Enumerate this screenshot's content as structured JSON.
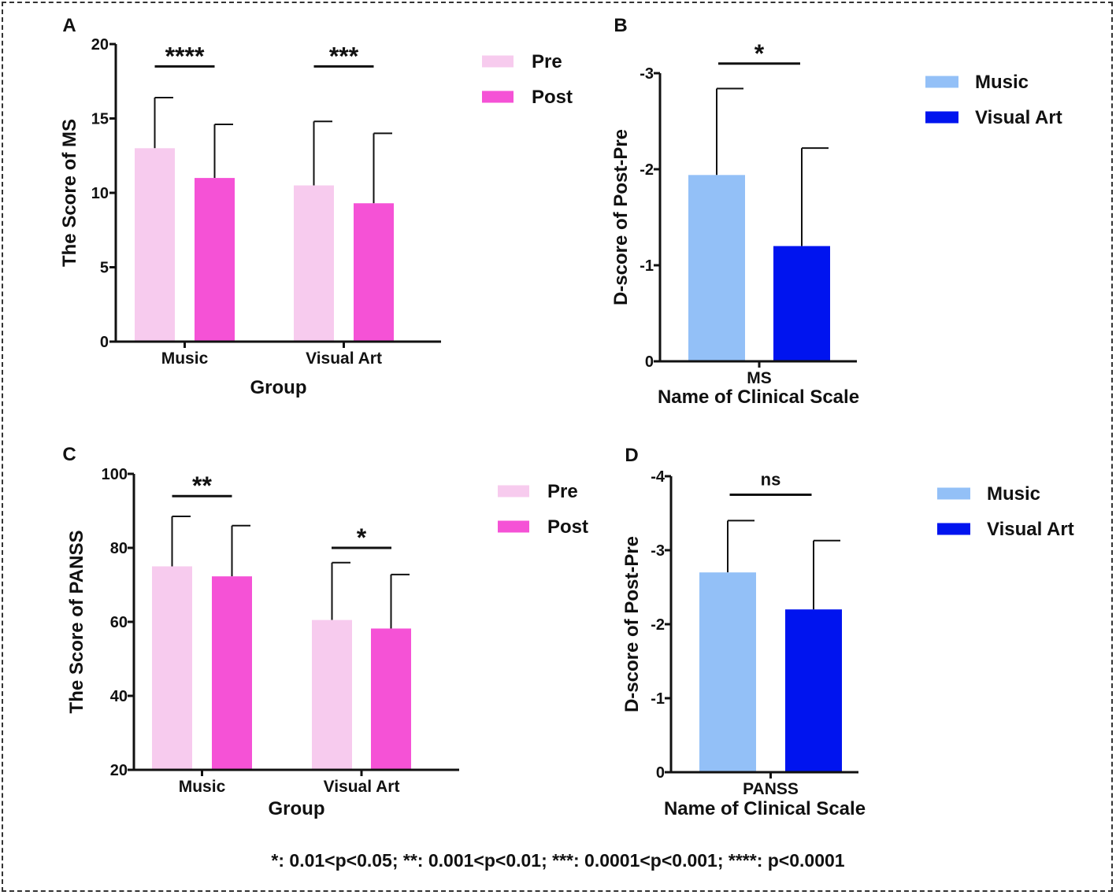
{
  "footnote": "*: 0.01<p<0.05; **: 0.001<p<0.01; ***: 0.0001<p<0.001; ****: p<0.0001",
  "colors": {
    "pre": "#f7cbee",
    "post": "#f552d6",
    "music": "#93c0f7",
    "visual_art": "#0014ef",
    "axis": "#111111"
  },
  "chart_data": [
    {
      "panel": "A",
      "type": "bar",
      "xlabel": "Group",
      "ylabel": "The Score of MS",
      "ylim": [
        0,
        20
      ],
      "yticks": [
        0,
        5,
        10,
        15,
        20
      ],
      "ytick_labels": [
        "0",
        "5",
        "10",
        "15",
        "20"
      ],
      "categories": [
        "Music",
        "Visual Art"
      ],
      "legend_position": "right",
      "series": [
        {
          "name": "Pre",
          "color_key": "pre",
          "values": [
            13.0,
            10.5
          ],
          "errors": [
            3.4,
            4.3
          ]
        },
        {
          "name": "Post",
          "color_key": "post",
          "values": [
            11.0,
            9.3
          ],
          "errors": [
            3.6,
            4.7
          ]
        }
      ],
      "significance": [
        {
          "category": "Music",
          "label": "****",
          "y": 18.5
        },
        {
          "category": "Visual Art",
          "label": "***",
          "y": 18.5
        }
      ]
    },
    {
      "panel": "B",
      "type": "bar",
      "xlabel": "Name of Clinical Scale",
      "ylabel": "D-score of Post-Pre",
      "ylim": [
        0,
        -3
      ],
      "yticks": [
        0,
        -1,
        -2,
        -3
      ],
      "ytick_labels": [
        "0",
        "-1",
        "-2",
        "-3"
      ],
      "categories": [
        "MS"
      ],
      "legend_position": "right",
      "series": [
        {
          "name": "Music",
          "color_key": "music",
          "values": [
            -1.94
          ],
          "errors": [
            0.9
          ]
        },
        {
          "name": "Visual Art",
          "color_key": "visual_art",
          "values": [
            -1.2
          ],
          "errors": [
            1.02
          ]
        }
      ],
      "significance": [
        {
          "category": "MS",
          "label": "*",
          "y": -3.1
        }
      ]
    },
    {
      "panel": "C",
      "type": "bar",
      "xlabel": "Group",
      "ylabel": "The Score of PANSS",
      "ylim": [
        20,
        100
      ],
      "yticks": [
        20,
        40,
        60,
        80,
        100
      ],
      "ytick_labels": [
        "20",
        "40",
        "60",
        "80",
        "100"
      ],
      "categories": [
        "Music",
        "Visual Art"
      ],
      "legend_position": "right",
      "series": [
        {
          "name": "Pre",
          "color_key": "pre",
          "values": [
            75.0,
            60.5
          ],
          "errors": [
            13.5,
            15.5
          ]
        },
        {
          "name": "Post",
          "color_key": "post",
          "values": [
            72.3,
            58.2
          ],
          "errors": [
            13.7,
            14.6
          ]
        }
      ],
      "significance": [
        {
          "category": "Music",
          "label": "**",
          "y": 94
        },
        {
          "category": "Visual Art",
          "label": "*",
          "y": 80
        }
      ]
    },
    {
      "panel": "D",
      "type": "bar",
      "xlabel": "Name of Clinical Scale",
      "ylabel": "D-score of Post-Pre",
      "ylim": [
        0,
        -4
      ],
      "yticks": [
        0,
        -1,
        -2,
        -3,
        -4
      ],
      "ytick_labels": [
        "0",
        "-1",
        "-2",
        "-3",
        "-4"
      ],
      "categories": [
        "PANSS"
      ],
      "legend_position": "right",
      "series": [
        {
          "name": "Music",
          "color_key": "music",
          "values": [
            -2.7
          ],
          "errors": [
            0.7
          ]
        },
        {
          "name": "Visual Art",
          "color_key": "visual_art",
          "values": [
            -2.2
          ],
          "errors": [
            0.93
          ]
        }
      ],
      "significance": [
        {
          "category": "PANSS",
          "label": "ns",
          "y": -3.75,
          "normal_weight": true
        }
      ]
    }
  ]
}
